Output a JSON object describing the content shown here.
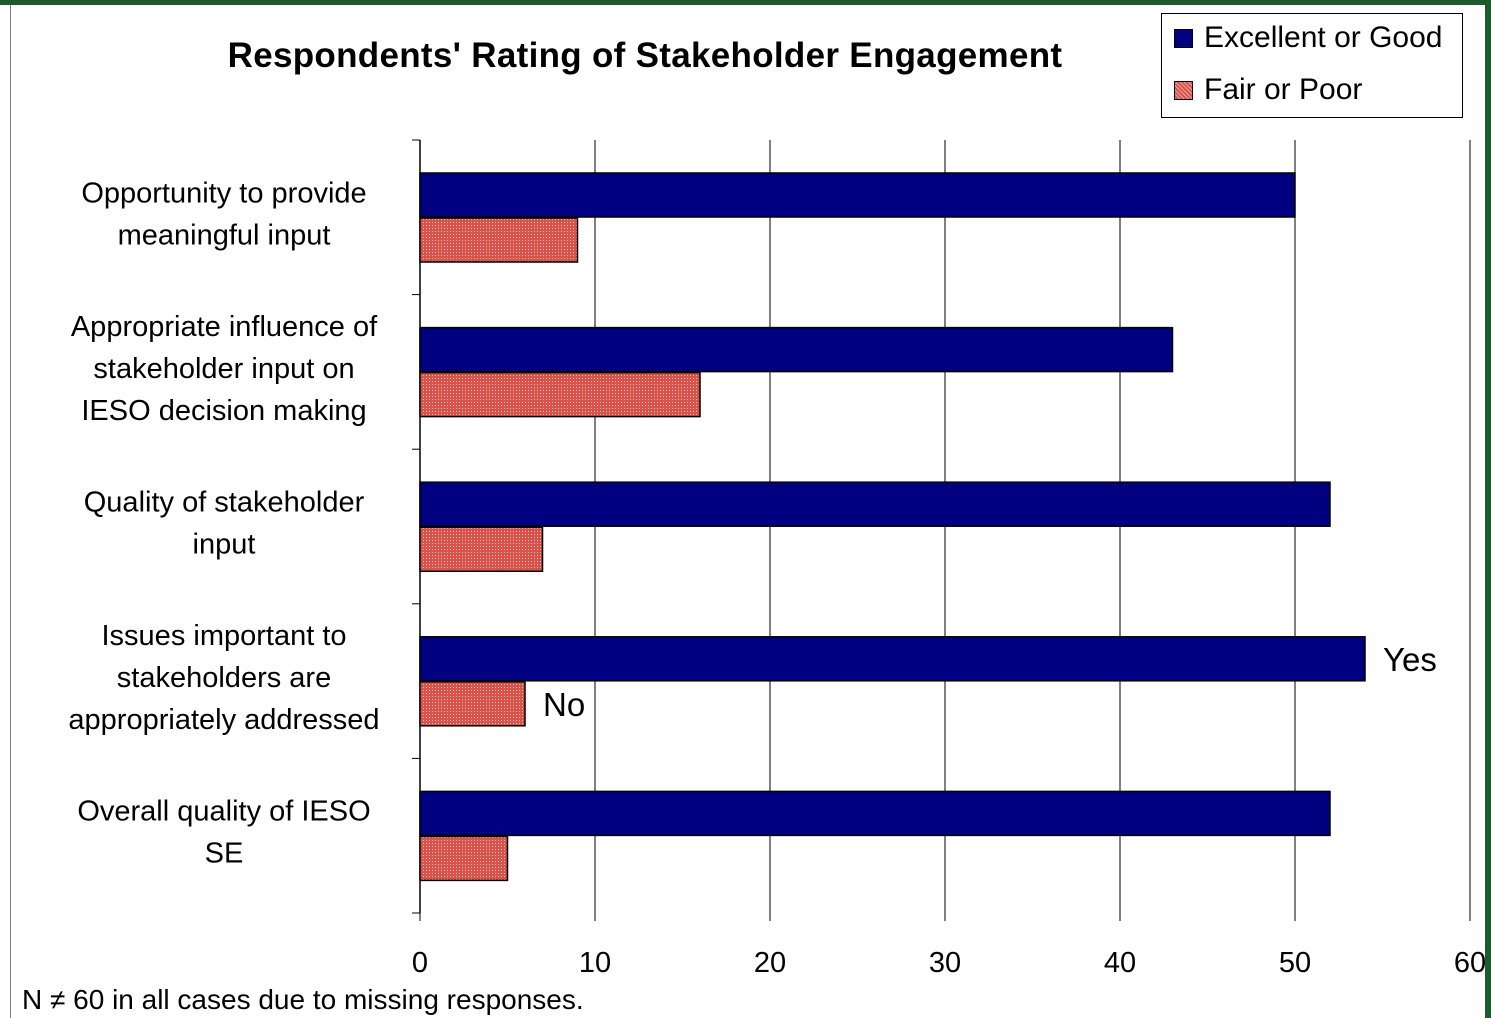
{
  "chart_data": {
    "type": "bar",
    "orientation": "horizontal",
    "title": "Respondents' Rating of Stakeholder Engagement",
    "categories": [
      [
        "Opportunity to provide",
        "meaningful input"
      ],
      [
        "Appropriate influence of",
        "stakeholder input on",
        "IESO decision making"
      ],
      [
        "Quality of stakeholder",
        "input"
      ],
      [
        "Issues important to",
        "stakeholders are",
        "appropriately addressed"
      ],
      [
        "Overall quality of IESO",
        "SE"
      ]
    ],
    "series": [
      {
        "name": "Excellent or Good",
        "color": "#000080",
        "values": [
          50,
          43,
          52,
          54,
          52
        ]
      },
      {
        "name": "Fair or Poor",
        "color": "#d9534a",
        "values": [
          9,
          16,
          7,
          6,
          5
        ]
      }
    ],
    "xlim": [
      0,
      60
    ],
    "xticks": [
      "0",
      "10",
      "20",
      "30",
      "40",
      "50",
      "60"
    ],
    "xlabel": "",
    "ylabel": "",
    "grid": "vertical",
    "legend": "top-right",
    "annotations": [
      {
        "text": "Yes",
        "category_index": 3,
        "series_index": 0
      },
      {
        "text": "No",
        "category_index": 3,
        "series_index": 1
      }
    ]
  },
  "footnote": "N ≠ 60 in all cases due to missing responses."
}
